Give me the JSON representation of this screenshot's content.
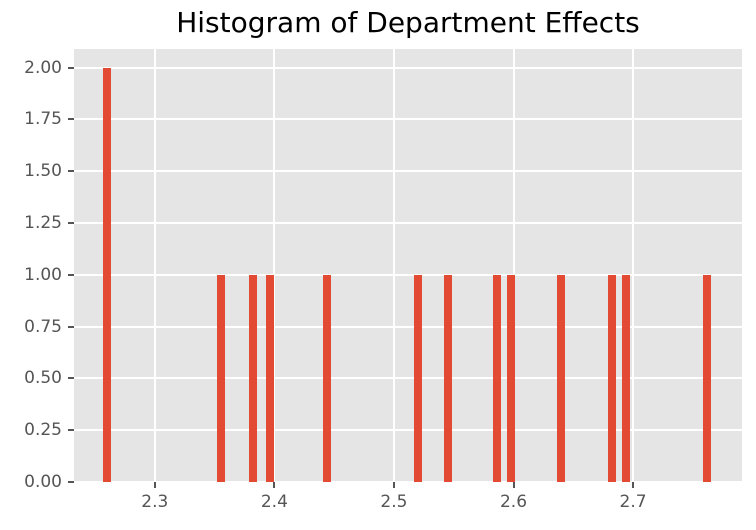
{
  "chart_data": {
    "type": "bar",
    "subtype": "histogram",
    "title": "Histogram of Department Effects",
    "xlabel": "",
    "ylabel": "",
    "bars": [
      {
        "x": 2.26,
        "count": 2
      },
      {
        "x": 2.355,
        "count": 1
      },
      {
        "x": 2.382,
        "count": 1
      },
      {
        "x": 2.396,
        "count": 1
      },
      {
        "x": 2.444,
        "count": 1
      },
      {
        "x": 2.52,
        "count": 1
      },
      {
        "x": 2.545,
        "count": 1
      },
      {
        "x": 2.586,
        "count": 1
      },
      {
        "x": 2.598,
        "count": 1
      },
      {
        "x": 2.64,
        "count": 1
      },
      {
        "x": 2.682,
        "count": 1
      },
      {
        "x": 2.694,
        "count": 1
      },
      {
        "x": 2.762,
        "count": 1
      }
    ],
    "bin_width": 0.0067,
    "xlim": [
      2.2324,
      2.7911
    ],
    "ylim": [
      0,
      2.09
    ],
    "x_ticks": [
      2.3,
      2.4,
      2.5,
      2.6,
      2.7
    ],
    "x_tick_labels": [
      "2.3",
      "2.4",
      "2.5",
      "2.6",
      "2.7"
    ],
    "y_ticks": [
      0.0,
      0.25,
      0.5,
      0.75,
      1.0,
      1.25,
      1.5,
      1.75,
      2.0
    ],
    "y_tick_labels": [
      "0.00",
      "0.25",
      "0.50",
      "0.75",
      "1.00",
      "1.25",
      "1.50",
      "1.75",
      "2.00"
    ],
    "grid": true,
    "legend": null,
    "colors": {
      "bar": "#E24A33",
      "plot_background": "#E5E5E5",
      "figure_background": "#FFFFFF",
      "grid": "#FFFFFF",
      "tick": "#555555",
      "tick_label": "#555555",
      "title": "#000000"
    }
  }
}
